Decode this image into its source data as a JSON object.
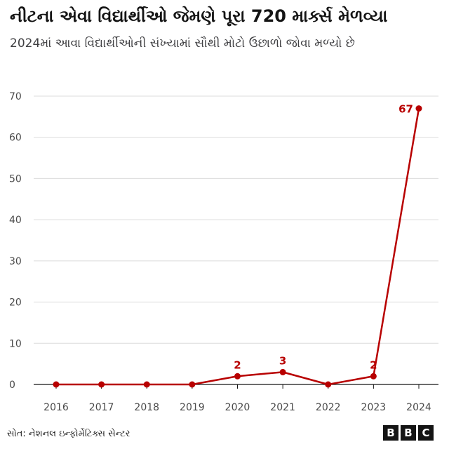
{
  "title": "નીટના એવા વિદ્યાર્થીઓ જેમણે પૂરા 720 માર્ક્સ મેળવ્યા",
  "subtitle": "2024માં આવા વિદ્યાર્થીઓની સંખ્યામાં સૌથી મોટો ઉછાળો જોવા મળ્યો છે",
  "source": "સોત: નેશનલ ઇન્ફોર્મેટિક્સ સેન્ટર",
  "logo": [
    "B",
    "B",
    "C"
  ],
  "chart_data": {
    "type": "line",
    "x": [
      "2016",
      "2017",
      "2018",
      "2019",
      "2020",
      "2021",
      "2022",
      "2023",
      "2024"
    ],
    "series": [
      {
        "values": [
          0,
          0,
          0,
          0,
          2,
          3,
          0,
          2,
          67
        ],
        "color": "#b80000"
      }
    ],
    "data_labels": [
      {
        "index": 4,
        "text": "2"
      },
      {
        "index": 5,
        "text": "3"
      },
      {
        "index": 7,
        "text": "2"
      },
      {
        "index": 8,
        "text": "67"
      }
    ],
    "yticks": [
      0,
      10,
      20,
      30,
      40,
      50,
      60,
      70
    ],
    "ylim": [
      0,
      70
    ],
    "grid": true,
    "legend": false,
    "gridColor": "#dcdcdc",
    "axisColor": "#141414"
  }
}
